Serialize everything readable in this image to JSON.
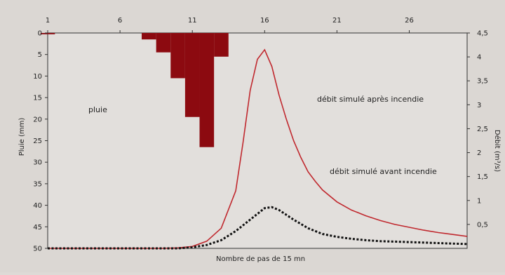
{
  "chart_data": {
    "type": "line",
    "title": "",
    "x_top_ticks": [
      "1",
      "6",
      "11",
      "16",
      "21",
      "26"
    ],
    "xlabel": "Nombre de pas de 15 mn",
    "ylabel_left": "Pluie (mm)",
    "ylabel_right": "Débit (m³/s)",
    "ylim_left": [
      0,
      50
    ],
    "ylim_right": [
      0,
      4.5
    ],
    "left_ticks": [
      "0",
      "5",
      "10",
      "15",
      "20",
      "25",
      "30",
      "35",
      "40",
      "45",
      "50"
    ],
    "right_ticks": [
      "4,5",
      "4",
      "3,5",
      "3",
      "2,5",
      "2",
      "1,5",
      "1",
      "0,5"
    ],
    "labels": {
      "pluie": "pluie",
      "after": "débit simulé après incendie",
      "before": "débit simulé avant incendie"
    },
    "rain": {
      "name": "pluie",
      "x": [
        1,
        2,
        3,
        4,
        5,
        6,
        7,
        8,
        9,
        10,
        11,
        12,
        13,
        14,
        15,
        16,
        17,
        18,
        19,
        20,
        21,
        22,
        23,
        24,
        25,
        26,
        27,
        28,
        29,
        30
      ],
      "values": [
        0.3,
        0,
        0,
        0,
        0,
        0,
        0,
        1.5,
        4.5,
        10.5,
        19.5,
        26.5,
        5.5,
        0,
        0,
        0,
        0,
        0,
        0,
        0,
        0,
        0,
        0,
        0,
        0,
        0,
        0,
        0,
        0,
        0
      ]
    },
    "series": [
      {
        "name": "débit simulé après incendie",
        "color": "#c0282e",
        "style": "solid",
        "x": [
          1,
          5,
          9,
          10,
          11,
          12,
          13,
          14,
          14.5,
          15,
          15.5,
          16,
          16.5,
          17,
          17.5,
          18,
          18.5,
          19,
          19.5,
          20,
          21,
          22,
          23,
          24,
          25,
          26,
          27,
          28,
          29,
          30
        ],
        "y": [
          0,
          0,
          0,
          0.01,
          0.04,
          0.15,
          0.42,
          1.2,
          2.2,
          3.3,
          3.95,
          4.15,
          3.8,
          3.2,
          2.7,
          2.25,
          1.9,
          1.6,
          1.4,
          1.22,
          0.97,
          0.8,
          0.68,
          0.58,
          0.5,
          0.44,
          0.38,
          0.33,
          0.29,
          0.25
        ]
      },
      {
        "name": "débit simulé avant incendie",
        "color": "#111111",
        "style": "dotted",
        "x": [
          1,
          9,
          10,
          11,
          12,
          13,
          14,
          15,
          16,
          16.5,
          17,
          18,
          19,
          20,
          21,
          22,
          23,
          24,
          25,
          26,
          27,
          28,
          29,
          30
        ],
        "y": [
          0,
          0,
          0,
          0.02,
          0.07,
          0.17,
          0.36,
          0.6,
          0.84,
          0.86,
          0.8,
          0.6,
          0.42,
          0.3,
          0.24,
          0.2,
          0.17,
          0.15,
          0.14,
          0.13,
          0.12,
          0.11,
          0.1,
          0.09
        ]
      }
    ]
  }
}
